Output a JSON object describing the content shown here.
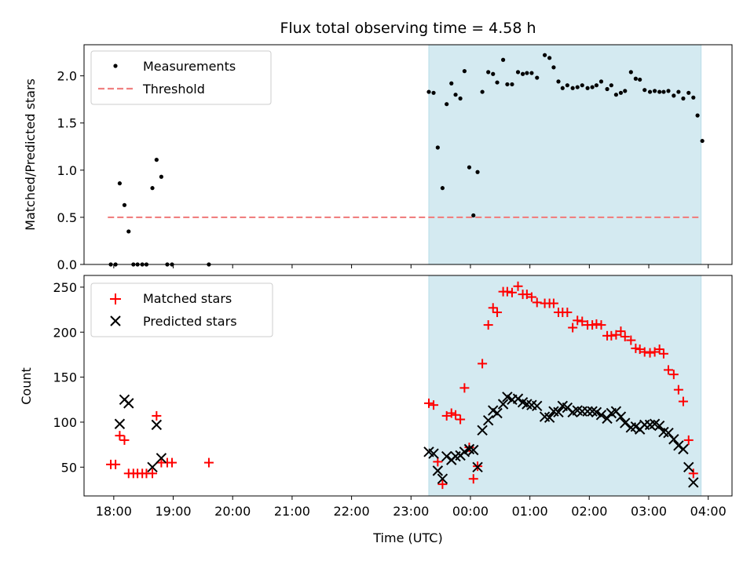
{
  "chart_data": [
    {
      "type": "scatter",
      "title": "Flux total observing time = 4.58 h",
      "ylabel": "Matched/Predicted stars",
      "ylim": [
        0,
        2.33
      ],
      "yticks": [
        0.0,
        0.5,
        1.0,
        1.5,
        2.0
      ],
      "ytick_labels": [
        "0.0",
        "0.5",
        "1.0",
        "1.5",
        "2.0"
      ],
      "xlim": [
        -0.5,
        10.4
      ],
      "shaded_region": [
        5.3,
        9.88
      ],
      "shade_color": "#d4eaf1",
      "legend_position": "upper-left",
      "legend": [
        {
          "label": "Measurements",
          "marker": "dot",
          "color": "#000000"
        },
        {
          "label": "Threshold",
          "marker": "dashed-line",
          "color": "#f08080"
        }
      ],
      "threshold": {
        "y": 0.5,
        "x_range": [
          -0.1,
          9.88
        ],
        "color": "#f08080"
      },
      "series": [
        {
          "name": "Measurements",
          "marker": "dot",
          "color": "#000000",
          "points": [
            [
              -0.05,
              0.0
            ],
            [
              0.03,
              0.0
            ],
            [
              0.1,
              0.86
            ],
            [
              0.18,
              0.63
            ],
            [
              0.25,
              0.35
            ],
            [
              0.33,
              0.0
            ],
            [
              0.4,
              0.0
            ],
            [
              0.48,
              0.0
            ],
            [
              0.55,
              0.0
            ],
            [
              0.65,
              0.81
            ],
            [
              0.72,
              1.11
            ],
            [
              0.8,
              0.93
            ],
            [
              0.9,
              0.0
            ],
            [
              0.98,
              0.0
            ],
            [
              1.6,
              0.0
            ],
            [
              5.3,
              1.83
            ],
            [
              5.38,
              1.82
            ],
            [
              5.45,
              1.24
            ],
            [
              5.53,
              0.81
            ],
            [
              5.6,
              1.7
            ],
            [
              5.68,
              1.92
            ],
            [
              5.75,
              1.8
            ],
            [
              5.83,
              1.76
            ],
            [
              5.9,
              2.05
            ],
            [
              5.98,
              1.03
            ],
            [
              6.05,
              0.52
            ],
            [
              6.12,
              0.98
            ],
            [
              6.2,
              1.83
            ],
            [
              6.3,
              2.04
            ],
            [
              6.38,
              2.02
            ],
            [
              6.45,
              1.93
            ],
            [
              6.55,
              2.17
            ],
            [
              6.62,
              1.91
            ],
            [
              6.7,
              1.91
            ],
            [
              6.8,
              2.04
            ],
            [
              6.88,
              2.02
            ],
            [
              6.95,
              2.03
            ],
            [
              7.03,
              2.03
            ],
            [
              7.12,
              1.98
            ],
            [
              7.25,
              2.22
            ],
            [
              7.33,
              2.19
            ],
            [
              7.4,
              2.09
            ],
            [
              7.48,
              1.94
            ],
            [
              7.55,
              1.87
            ],
            [
              7.63,
              1.9
            ],
            [
              7.72,
              1.87
            ],
            [
              7.8,
              1.88
            ],
            [
              7.88,
              1.9
            ],
            [
              7.97,
              1.87
            ],
            [
              8.05,
              1.88
            ],
            [
              8.12,
              1.9
            ],
            [
              8.2,
              1.94
            ],
            [
              8.3,
              1.86
            ],
            [
              8.37,
              1.9
            ],
            [
              8.45,
              1.8
            ],
            [
              8.53,
              1.82
            ],
            [
              8.6,
              1.84
            ],
            [
              8.7,
              2.04
            ],
            [
              8.78,
              1.97
            ],
            [
              8.85,
              1.96
            ],
            [
              8.93,
              1.85
            ],
            [
              9.02,
              1.83
            ],
            [
              9.1,
              1.84
            ],
            [
              9.18,
              1.83
            ],
            [
              9.25,
              1.83
            ],
            [
              9.33,
              1.84
            ],
            [
              9.42,
              1.79
            ],
            [
              9.5,
              1.83
            ],
            [
              9.58,
              1.76
            ],
            [
              9.67,
              1.82
            ],
            [
              9.75,
              1.77
            ],
            [
              9.82,
              1.58
            ],
            [
              9.9,
              1.31
            ]
          ]
        }
      ]
    },
    {
      "type": "scatter",
      "xlabel": "Time (UTC)",
      "ylabel": "Count",
      "ylim": [
        18,
        263
      ],
      "yticks": [
        50,
        100,
        150,
        200,
        250
      ],
      "ytick_labels": [
        "50",
        "100",
        "150",
        "200",
        "250"
      ],
      "xlim": [
        -0.5,
        10.4
      ],
      "xticks": [
        0,
        1,
        2,
        3,
        4,
        5,
        6,
        7,
        8,
        9,
        10
      ],
      "xtick_labels": [
        "18:00",
        "19:00",
        "20:00",
        "21:00",
        "22:00",
        "23:00",
        "00:00",
        "01:00",
        "02:00",
        "03:00",
        "04:00"
      ],
      "shaded_region": [
        5.3,
        9.88
      ],
      "shade_color": "#d4eaf1",
      "legend_position": "upper-left",
      "legend": [
        {
          "label": "Matched stars",
          "marker": "plus",
          "color": "#ff0000"
        },
        {
          "label": "Predicted stars",
          "marker": "x",
          "color": "#000000"
        }
      ],
      "series": [
        {
          "name": "Matched stars",
          "marker": "plus",
          "color": "#ff0000",
          "points": [
            [
              -0.05,
              53
            ],
            [
              0.03,
              53
            ],
            [
              0.1,
              85
            ],
            [
              0.18,
              80
            ],
            [
              0.25,
              43
            ],
            [
              0.33,
              43
            ],
            [
              0.4,
              43
            ],
            [
              0.48,
              43
            ],
            [
              0.55,
              43
            ],
            [
              0.65,
              43
            ],
            [
              0.72,
              107
            ],
            [
              0.8,
              55
            ],
            [
              0.9,
              55
            ],
            [
              0.98,
              55
            ],
            [
              1.6,
              55
            ],
            [
              5.3,
              121
            ],
            [
              5.38,
              119
            ],
            [
              5.45,
              56
            ],
            [
              5.53,
              31
            ],
            [
              5.6,
              107
            ],
            [
              5.68,
              110
            ],
            [
              5.75,
              108
            ],
            [
              5.83,
              103
            ],
            [
              5.9,
              138
            ],
            [
              5.98,
              72
            ],
            [
              6.05,
              37
            ],
            [
              6.12,
              51
            ],
            [
              6.2,
              165
            ],
            [
              6.3,
              208
            ],
            [
              6.38,
              227
            ],
            [
              6.45,
              222
            ],
            [
              6.55,
              245
            ],
            [
              6.62,
              245
            ],
            [
              6.7,
              244
            ],
            [
              6.8,
              251
            ],
            [
              6.88,
              242
            ],
            [
              6.95,
              242
            ],
            [
              7.03,
              239
            ],
            [
              7.12,
              233
            ],
            [
              7.25,
              232
            ],
            [
              7.33,
              232
            ],
            [
              7.4,
              232
            ],
            [
              7.48,
              222
            ],
            [
              7.55,
              222
            ],
            [
              7.63,
              222
            ],
            [
              7.72,
              205
            ],
            [
              7.8,
              213
            ],
            [
              7.88,
              212
            ],
            [
              7.97,
              208
            ],
            [
              8.05,
              208
            ],
            [
              8.12,
              209
            ],
            [
              8.2,
              208
            ],
            [
              8.3,
              196
            ],
            [
              8.37,
              196
            ],
            [
              8.45,
              197
            ],
            [
              8.53,
              201
            ],
            [
              8.6,
              195
            ],
            [
              8.7,
              191
            ],
            [
              8.78,
              182
            ],
            [
              8.85,
              181
            ],
            [
              8.93,
              178
            ],
            [
              9.02,
              177
            ],
            [
              9.1,
              178
            ],
            [
              9.18,
              181
            ],
            [
              9.25,
              176
            ],
            [
              9.33,
              158
            ],
            [
              9.42,
              153
            ],
            [
              9.5,
              136
            ],
            [
              9.58,
              123
            ],
            [
              9.67,
              80
            ],
            [
              9.75,
              43
            ]
          ]
        },
        {
          "name": "Predicted stars",
          "marker": "x",
          "color": "#000000",
          "points": [
            [
              0.1,
              98
            ],
            [
              0.18,
              125
            ],
            [
              0.25,
              121
            ],
            [
              0.65,
              50
            ],
            [
              0.72,
              97
            ],
            [
              0.8,
              60
            ],
            [
              5.3,
              67
            ],
            [
              5.38,
              65
            ],
            [
              5.45,
              46
            ],
            [
              5.53,
              37
            ],
            [
              5.6,
              62
            ],
            [
              5.68,
              58
            ],
            [
              5.75,
              62
            ],
            [
              5.83,
              63
            ],
            [
              5.9,
              67
            ],
            [
              5.98,
              70
            ],
            [
              6.05,
              69
            ],
            [
              6.12,
              50
            ],
            [
              6.2,
              91
            ],
            [
              6.3,
              102
            ],
            [
              6.38,
              113
            ],
            [
              6.45,
              110
            ],
            [
              6.55,
              120
            ],
            [
              6.62,
              128
            ],
            [
              6.7,
              125
            ],
            [
              6.8,
              126
            ],
            [
              6.88,
              122
            ],
            [
              6.95,
              120
            ],
            [
              7.03,
              119
            ],
            [
              7.12,
              118
            ],
            [
              7.25,
              106
            ],
            [
              7.33,
              105
            ],
            [
              7.4,
              112
            ],
            [
              7.48,
              111
            ],
            [
              7.55,
              118
            ],
            [
              7.63,
              116
            ],
            [
              7.72,
              111
            ],
            [
              7.8,
              113
            ],
            [
              7.88,
              112
            ],
            [
              7.97,
              112
            ],
            [
              8.05,
              112
            ],
            [
              8.12,
              111
            ],
            [
              8.2,
              108
            ],
            [
              8.3,
              104
            ],
            [
              8.37,
              110
            ],
            [
              8.45,
              112
            ],
            [
              8.53,
              106
            ],
            [
              8.6,
              99
            ],
            [
              8.7,
              94
            ],
            [
              8.78,
              95
            ],
            [
              8.85,
              92
            ],
            [
              8.93,
              97
            ],
            [
              9.02,
              97
            ],
            [
              9.1,
              98
            ],
            [
              9.18,
              96
            ],
            [
              9.25,
              89
            ],
            [
              9.33,
              88
            ],
            [
              9.42,
              81
            ],
            [
              9.5,
              74
            ],
            [
              9.58,
              70
            ],
            [
              9.67,
              50
            ],
            [
              9.75,
              33
            ]
          ]
        }
      ]
    }
  ]
}
